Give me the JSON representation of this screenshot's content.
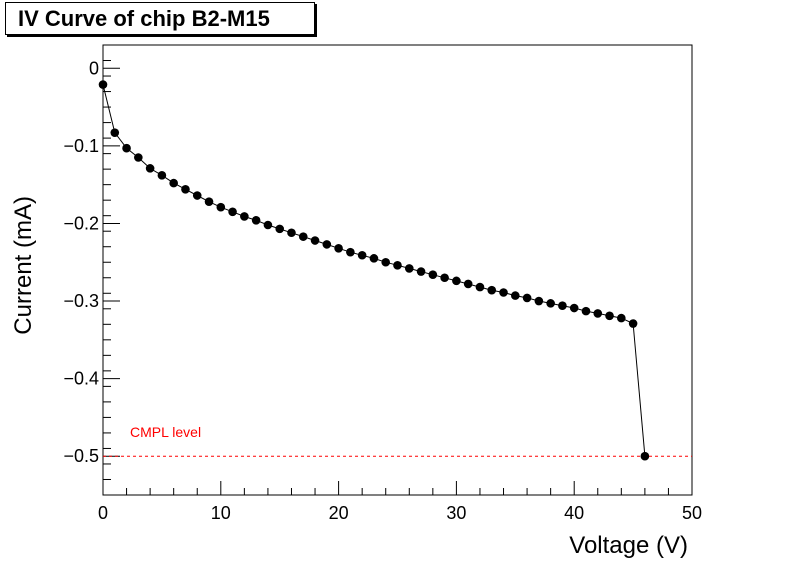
{
  "chart_data": {
    "type": "scatter",
    "title": "IV Curve of chip B2-M15",
    "xlabel": "Voltage (V)",
    "ylabel": "Current (mA)",
    "xlim": [
      0,
      50
    ],
    "ylim": [
      -0.55,
      0.03
    ],
    "x_ticks": [
      0,
      10,
      20,
      30,
      40,
      50
    ],
    "y_ticks": [
      0,
      -0.1,
      -0.2,
      -0.3,
      -0.4,
      -0.5
    ],
    "x_tick_labels": [
      "0",
      "10",
      "20",
      "30",
      "40",
      "50"
    ],
    "y_tick_labels": [
      "0",
      "−0.1",
      "−0.2",
      "−0.3",
      "−0.4",
      "−0.5"
    ],
    "grid": false,
    "marker_color": "#000000",
    "line_color": "#000000",
    "series": [
      {
        "x": [
          0,
          1,
          2,
          3,
          4,
          5,
          6,
          7,
          8,
          9,
          10,
          11,
          12,
          13,
          14,
          15,
          16,
          17,
          18,
          19,
          20,
          21,
          22,
          23,
          24,
          25,
          26,
          27,
          28,
          29,
          30,
          31,
          32,
          33,
          34,
          35,
          36,
          37,
          38,
          39,
          40,
          41,
          42,
          43,
          44,
          45,
          46
        ],
        "y": [
          -0.021,
          -0.083,
          -0.103,
          -0.115,
          -0.129,
          -0.138,
          -0.148,
          -0.156,
          -0.164,
          -0.172,
          -0.179,
          -0.185,
          -0.191,
          -0.196,
          -0.202,
          -0.207,
          -0.212,
          -0.217,
          -0.222,
          -0.227,
          -0.232,
          -0.237,
          -0.241,
          -0.245,
          -0.25,
          -0.254,
          -0.258,
          -0.262,
          -0.266,
          -0.27,
          -0.274,
          -0.278,
          -0.282,
          -0.286,
          -0.289,
          -0.293,
          -0.296,
          -0.3,
          -0.303,
          -0.306,
          -0.309,
          -0.313,
          -0.316,
          -0.319,
          -0.322,
          -0.329,
          -0.5
        ]
      }
    ],
    "reference_line": {
      "y": -0.5,
      "label": "CMPL level",
      "color": "#ff0000"
    }
  }
}
